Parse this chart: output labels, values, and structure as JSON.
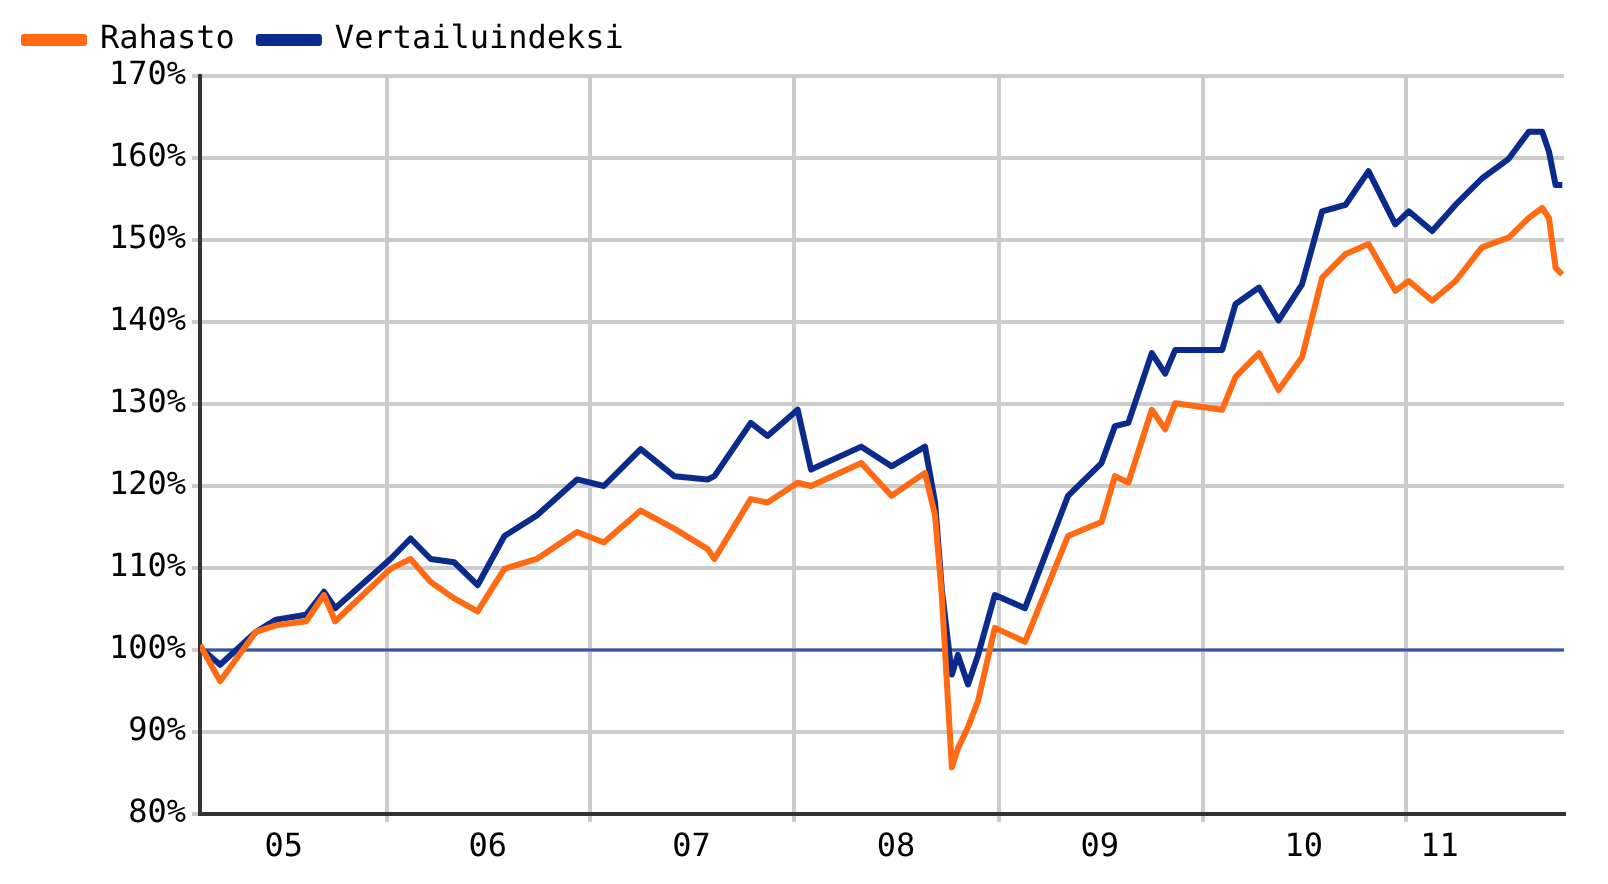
{
  "chart_data": {
    "type": "line",
    "x": [
      "2005-02-01",
      "2005-03-09",
      "2005-05-12",
      "2005-06-17",
      "2005-08-10",
      "2005-09-11",
      "2005-10-01",
      "2006-01-08",
      "2006-02-13",
      "2006-03-21",
      "2006-05-02",
      "2006-06-13",
      "2006-07-31",
      "2006-09-27",
      "2006-12-08",
      "2007-01-25",
      "2007-04-01",
      "2007-05-31",
      "2007-07-30",
      "2007-08-11",
      "2007-10-15",
      "2007-11-14",
      "2008-01-07",
      "2008-01-31",
      "2008-04-30",
      "2008-06-23",
      "2008-08-22",
      "2008-09-09",
      "2008-09-21",
      "2008-10-09",
      "2008-10-20",
      "2008-11-07",
      "2008-11-25",
      "2008-12-25",
      "2009-02-17",
      "2009-05-05",
      "2009-07-04",
      "2009-07-28",
      "2009-08-21",
      "2009-10-02",
      "2009-10-26",
      "2009-11-13",
      "2010-02-05",
      "2010-03-01",
      "2010-04-12",
      "2010-05-17",
      "2010-06-28",
      "2010-08-03",
      "2010-09-14",
      "2010-10-25",
      "2010-12-12",
      "2011-01-05",
      "2011-02-16",
      "2011-03-30",
      "2011-05-16",
      "2011-07-03",
      "2011-08-08",
      "2011-09-01",
      "2011-09-13",
      "2011-09-25",
      "2011-10-07"
    ],
    "series": [
      {
        "name": "Rahasto",
        "color": "#ff6a13",
        "values": [
          100.6,
          96.2,
          102.2,
          103,
          103.5,
          106.7,
          103.5,
          109.9,
          111.1,
          108.3,
          106.3,
          104.7,
          109.9,
          111.1,
          114.4,
          113.1,
          117,
          114.8,
          112.3,
          111.1,
          118.4,
          118,
          120.4,
          120,
          122.8,
          118.8,
          121.6,
          116.4,
          106.7,
          85.7,
          88,
          90.6,
          93.8,
          102.7,
          101,
          113.9,
          115.6,
          121.2,
          120.4,
          129.3,
          126.9,
          130.1,
          129.3,
          133.3,
          136.2,
          131.7,
          135.7,
          145.4,
          148.3,
          149.5,
          143.8,
          145,
          142.6,
          145,
          149.1,
          150.3,
          152.7,
          153.9,
          152.7,
          146.6,
          145.8
        ]
      },
      {
        "name": "Vertailuindeksi",
        "color": "#0a2a8c",
        "values": [
          100.3,
          98.2,
          102.2,
          103.7,
          104.3,
          107.1,
          105.1,
          111.1,
          113.6,
          111.1,
          110.7,
          107.9,
          113.9,
          116.4,
          120.8,
          120,
          124.5,
          121.2,
          120.8,
          121.2,
          127.7,
          126.1,
          129.3,
          122,
          124.8,
          122.4,
          124.8,
          118,
          107.5,
          97,
          99.4,
          95.8,
          99.4,
          106.7,
          105.1,
          118.8,
          122.8,
          127.3,
          127.7,
          136.2,
          133.7,
          136.6,
          136.6,
          142.2,
          144.2,
          140.2,
          144.6,
          153.5,
          154.3,
          158.4,
          151.9,
          153.5,
          151.1,
          154.3,
          157.5,
          159.9,
          163.2,
          163.2,
          160.8,
          156.7,
          156.7
        ]
      }
    ],
    "xlim": [
      "2005-02-01",
      "2011-10-10"
    ],
    "xticks": [
      {
        "value": "2005-07-01",
        "label": "05"
      },
      {
        "value": "2006-01-01",
        "label": null
      },
      {
        "value": "2006-07-01",
        "label": "06"
      },
      {
        "value": "2007-01-01",
        "label": null
      },
      {
        "value": "2007-07-01",
        "label": "07"
      },
      {
        "value": "2008-01-01",
        "label": null
      },
      {
        "value": "2008-07-01",
        "label": "08"
      },
      {
        "value": "2009-01-01",
        "label": null
      },
      {
        "value": "2009-07-01",
        "label": "09"
      },
      {
        "value": "2010-01-01",
        "label": null
      },
      {
        "value": "2010-07-01",
        "label": "10"
      },
      {
        "value": "2011-01-01",
        "label": null
      },
      {
        "value": "2011-03-01",
        "label": "11"
      }
    ],
    "ylim": [
      80,
      170
    ],
    "yticks": [
      {
        "value": 80,
        "label": "80%"
      },
      {
        "value": 90,
        "label": "90%"
      },
      {
        "value": 100,
        "label": "100%"
      },
      {
        "value": 110,
        "label": "110%"
      },
      {
        "value": 120,
        "label": "120%"
      },
      {
        "value": 130,
        "label": "130%"
      },
      {
        "value": 140,
        "label": "140%"
      },
      {
        "value": 150,
        "label": "150%"
      },
      {
        "value": 160,
        "label": "160%"
      },
      {
        "value": 170,
        "label": "170%"
      }
    ],
    "ref_lines": [
      {
        "axis": "y",
        "value": 100,
        "color": "#3355aa"
      }
    ],
    "grid": true,
    "legend": "top left",
    "marker": "none",
    "line_style": "solid"
  }
}
